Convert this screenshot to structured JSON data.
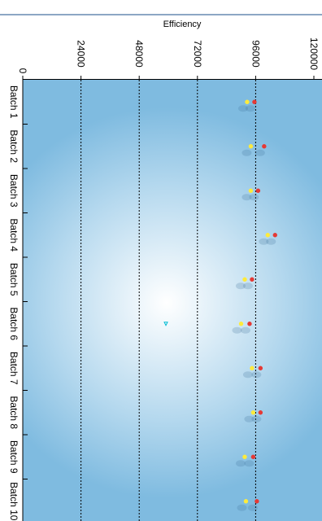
{
  "chart_data": {
    "type": "scatter",
    "orientation": "rotated-90-clockwise",
    "title": "",
    "xlabel": "",
    "ylabel": "Efficiency",
    "categories": [
      "Batch 1",
      "Batch 2",
      "Batch 3",
      "Batch 4",
      "Batch 5",
      "Batch 6",
      "Batch 7",
      "Batch 8",
      "Batch 9",
      "Batch 10"
    ],
    "y_ticks": [
      "0",
      "24000",
      "48000",
      "72000",
      "96000",
      "120000"
    ],
    "ylim": [
      0,
      120000
    ],
    "grid": {
      "horizontal_dotted": [
        24000,
        48000,
        72000,
        96000
      ]
    },
    "legend": "none",
    "series": [
      {
        "color": "#ffeb3b",
        "values": [
          92500,
          94000,
          94000,
          101000,
          91500,
          90000,
          94500,
          95000,
          91500,
          92000
        ]
      },
      {
        "color": "#e53935",
        "values": [
          95500,
          99500,
          97000,
          104000,
          94500,
          93500,
          98000,
          98000,
          95000,
          96500
        ]
      }
    ],
    "annotations": [
      {
        "shape": "triangle",
        "color": "#00bcd4",
        "category_position": 5.5,
        "value": 59000
      }
    ],
    "colors": {
      "plot_center": "#ffffff",
      "plot_edge": "#7fbbe0",
      "grid": "#000000"
    }
  }
}
